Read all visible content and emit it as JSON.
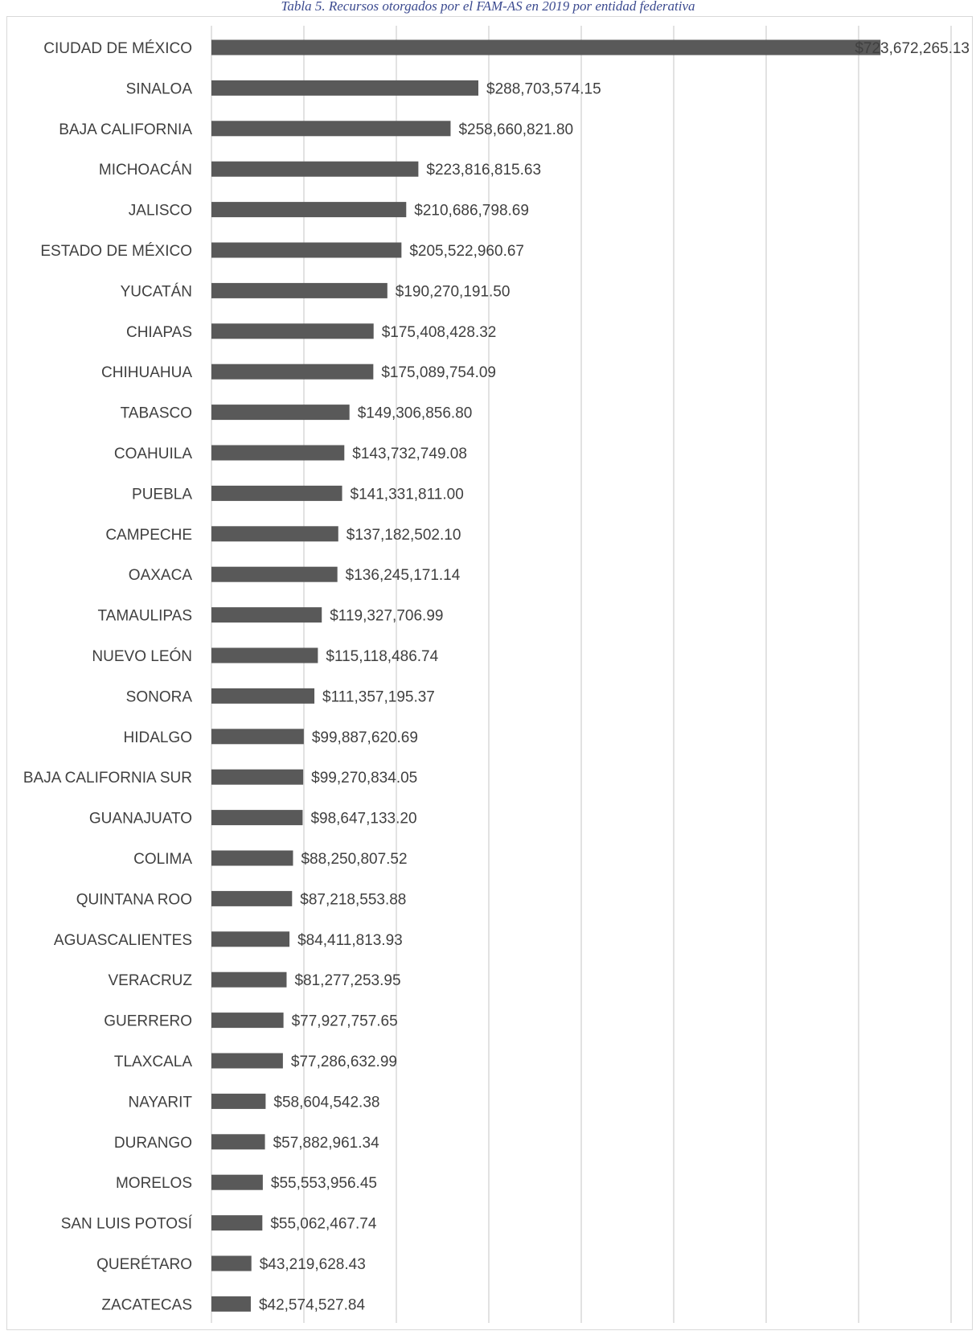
{
  "caption": "Tabla 5. Recursos otorgados por el FAM-AS en 2019 por entidad federativa",
  "chart_data": {
    "type": "bar",
    "orientation": "horizontal",
    "title": "",
    "xlabel": "",
    "ylabel": "",
    "xlim": [
      0,
      800000000
    ],
    "grid": "vertical",
    "bar_color": "#595959",
    "categories": [
      "CIUDAD DE MÉXICO",
      "SINALOA",
      "BAJA CALIFORNIA",
      "MICHOACÁN",
      "JALISCO",
      "ESTADO DE MÉXICO",
      "YUCATÁN",
      "CHIAPAS",
      "CHIHUAHUA",
      "TABASCO",
      "COAHUILA",
      "PUEBLA",
      "CAMPECHE",
      "OAXACA",
      "TAMAULIPAS",
      "NUEVO LEÓN",
      "SONORA",
      "HIDALGO",
      "BAJA CALIFORNIA SUR",
      "GUANAJUATO",
      "COLIMA",
      "QUINTANA ROO",
      "AGUASCALIENTES",
      "VERACRUZ",
      "GUERRERO",
      "TLAXCALA",
      "NAYARIT",
      "DURANGO",
      "MORELOS",
      "SAN LUIS POTOSÍ",
      "QUERÉTARO",
      "ZACATECAS"
    ],
    "values": [
      723672265.13,
      288703574.15,
      258660821.8,
      223816815.63,
      210686798.69,
      205522960.67,
      190270191.5,
      175408428.32,
      175089754.09,
      149306856.8,
      143732749.08,
      141331811.0,
      137182502.1,
      136245171.14,
      119327706.99,
      115118486.74,
      111357195.37,
      99887620.69,
      99270834.05,
      98647133.2,
      88250807.52,
      87218553.88,
      84411813.93,
      81277253.95,
      77927757.65,
      77286632.99,
      58604542.38,
      57882961.34,
      55553956.45,
      55062467.74,
      43219628.43,
      42574527.84
    ],
    "data_labels": [
      "$723,672,265.13",
      "$288,703,574.15",
      "$258,660,821.80",
      "$223,816,815.63",
      "$210,686,798.69",
      "$205,522,960.67",
      "$190,270,191.50",
      "$175,408,428.32",
      "$175,089,754.09",
      "$149,306,856.80",
      "$143,732,749.08",
      "$141,331,811.00",
      "$137,182,502.10",
      "$136,245,171.14",
      "$119,327,706.99",
      "$115,118,486.74",
      "$111,357,195.37",
      "$99,887,620.69",
      "$99,270,834.05",
      "$98,647,133.20",
      "$88,250,807.52",
      "$87,218,553.88",
      "$84,411,813.93",
      "$81,277,253.95",
      "$77,927,757.65",
      "$77,286,632.99",
      "$58,604,542.38",
      "$57,882,961.34",
      "$55,553,956.45",
      "$55,062,467.74",
      "$43,219,628.43",
      "$42,574,527.84"
    ]
  }
}
